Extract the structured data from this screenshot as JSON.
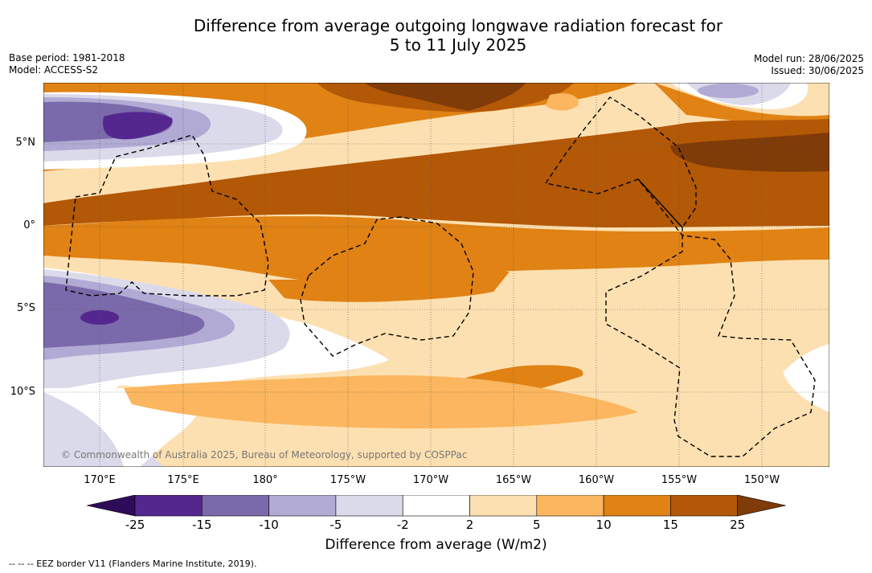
{
  "header": {
    "title_line1": "Difference from average outgoing longwave radiation forecast for",
    "title_line2": "5 to 11 July 2025",
    "base_period": "Base period: 1981-2018",
    "model": "Model: ACCESS-S2",
    "model_run": "Model run: 28/06/2025",
    "issued": "Issued: 30/06/2025"
  },
  "map": {
    "lat_labels": [
      "5°N",
      "0°",
      "5°S",
      "10°S"
    ],
    "lon_labels": [
      "170°E",
      "175°E",
      "180°",
      "175°W",
      "170°W",
      "165°W",
      "160°W",
      "155°W",
      "150°W"
    ],
    "credit": "© Commonwealth of Australia 2025, Bureau of Meteorology, supported by COSPPac"
  },
  "colorbar": {
    "ticks": [
      "-25",
      "-15",
      "-10",
      "-5",
      "-2",
      "2",
      "5",
      "10",
      "15",
      "25"
    ],
    "colors": [
      "#2f0c5a",
      "#54278f",
      "#7b6aab",
      "#b1aad4",
      "#dadaeb",
      "#ffffff",
      "#fde0b1",
      "#fbb65f",
      "#e08214",
      "#b35806",
      "#7f3b08"
    ],
    "label": "Difference from average (W/m2)"
  },
  "footer": {
    "legend": "--  --  -- EEZ border V11 (Flanders Marine Institute, 2019)."
  }
}
